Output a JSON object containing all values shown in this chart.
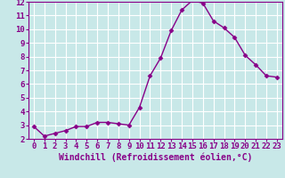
{
  "x": [
    0,
    1,
    2,
    3,
    4,
    5,
    6,
    7,
    8,
    9,
    10,
    11,
    12,
    13,
    14,
    15,
    16,
    17,
    18,
    19,
    20,
    21,
    22,
    23
  ],
  "y": [
    2.9,
    2.2,
    2.4,
    2.6,
    2.9,
    2.9,
    3.2,
    3.2,
    3.1,
    3.0,
    4.3,
    6.6,
    7.9,
    9.9,
    11.4,
    12.1,
    11.9,
    10.6,
    10.1,
    9.4,
    8.1,
    7.4,
    6.6,
    6.5
  ],
  "line_color": "#880088",
  "marker": "D",
  "marker_size": 2.5,
  "bg_color": "#c8e8e8",
  "grid_color": "#ffffff",
  "xlabel": "Windchill (Refroidissement éolien,°C)",
  "ylim": [
    2,
    12
  ],
  "xlim": [
    -0.5,
    23.5
  ],
  "yticks": [
    2,
    3,
    4,
    5,
    6,
    7,
    8,
    9,
    10,
    11,
    12
  ],
  "xticks": [
    0,
    1,
    2,
    3,
    4,
    5,
    6,
    7,
    8,
    9,
    10,
    11,
    12,
    13,
    14,
    15,
    16,
    17,
    18,
    19,
    20,
    21,
    22,
    23
  ],
  "tick_fontsize": 6.5,
  "xlabel_fontsize": 7,
  "label_color": "#880088",
  "spine_color": "#880088",
  "linewidth": 1.0
}
